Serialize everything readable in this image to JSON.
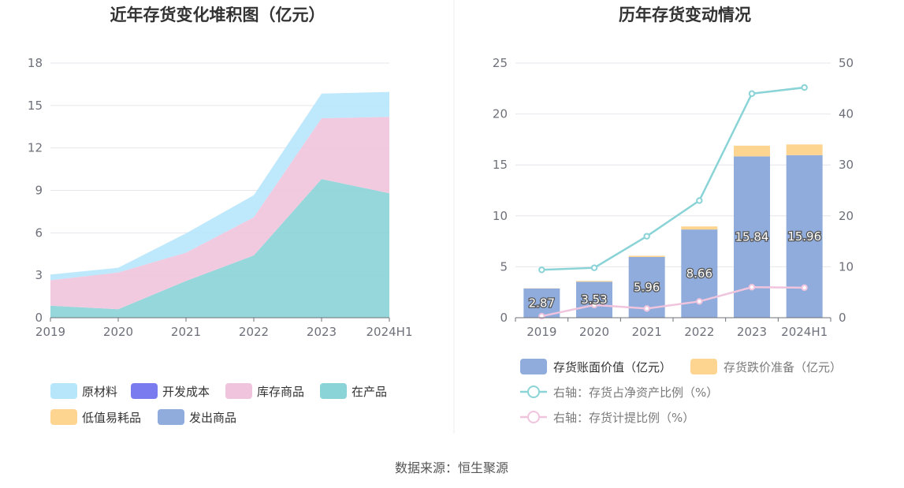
{
  "source_text": "数据来源：恒生聚源",
  "chart_data": [
    {
      "type": "area",
      "title": "近年存货变化堆积图（亿元）",
      "categories": [
        "2019",
        "2020",
        "2021",
        "2022",
        "2023",
        "2024H1"
      ],
      "ylim": [
        0,
        18
      ],
      "yticks": [
        0,
        3,
        6,
        9,
        12,
        15,
        18
      ],
      "grid": true,
      "legend_position": "bottom",
      "series": [
        {
          "name": "在产品",
          "color": "#8ad3d6",
          "values": [
            0.85,
            0.6,
            2.6,
            4.4,
            9.8,
            8.8
          ]
        },
        {
          "name": "库存商品",
          "color": "#f0c4dd",
          "values": [
            1.8,
            2.6,
            2.0,
            2.7,
            4.3,
            5.4
          ]
        },
        {
          "name": "原材料",
          "color": "#b7e6fb",
          "values": [
            0.4,
            0.33,
            1.36,
            1.56,
            1.74,
            1.76
          ]
        },
        {
          "name": "开发成本",
          "color": "#7b7bf0",
          "values": [
            0,
            0,
            0,
            0,
            0,
            0
          ]
        },
        {
          "name": "低值易耗品",
          "color": "#fdd591",
          "values": [
            0,
            0,
            0,
            0,
            0,
            0
          ]
        },
        {
          "name": "发出商品",
          "color": "#8facdc",
          "values": [
            0,
            0,
            0,
            0,
            0,
            0
          ]
        }
      ],
      "legend_order": [
        "原材料",
        "开发成本",
        "库存商品",
        "在产品",
        "低值易耗品",
        "发出商品"
      ]
    },
    {
      "type": "bar",
      "title": "历年存货变动情况",
      "categories": [
        "2019",
        "2020",
        "2021",
        "2022",
        "2023",
        "2024H1"
      ],
      "ylim": [
        0,
        25
      ],
      "yticks": [
        0,
        5,
        10,
        15,
        20,
        25
      ],
      "y2lim": [
        0,
        50
      ],
      "y2ticks": [
        0,
        10,
        20,
        30,
        40,
        50
      ],
      "grid": true,
      "legend_position": "bottom",
      "series": [
        {
          "name": "存货账面价值（亿元）",
          "type": "bar",
          "color": "#8facdc",
          "values": [
            2.87,
            3.53,
            5.96,
            8.66,
            15.84,
            15.96
          ],
          "labels": [
            "2.87",
            "3.53",
            "5.96",
            "8.66",
            "15.84",
            "15.96"
          ]
        },
        {
          "name": "存货跌价准备（亿元）",
          "type": "bar",
          "color": "#fdd591",
          "values": [
            0.02,
            0.08,
            0.12,
            0.3,
            1.05,
            1.05
          ]
        },
        {
          "name": "右轴：存货占净资产比例（%）",
          "type": "line",
          "axis": "right",
          "color": "#8ad3d6",
          "values": [
            9.4,
            9.8,
            16.0,
            23.0,
            44.0,
            45.2
          ]
        },
        {
          "name": "右轴：存货计提比例（%）",
          "type": "line",
          "axis": "right",
          "color": "#f0c4dd",
          "values": [
            0.3,
            2.5,
            1.8,
            3.2,
            6.0,
            5.9
          ]
        }
      ]
    }
  ]
}
